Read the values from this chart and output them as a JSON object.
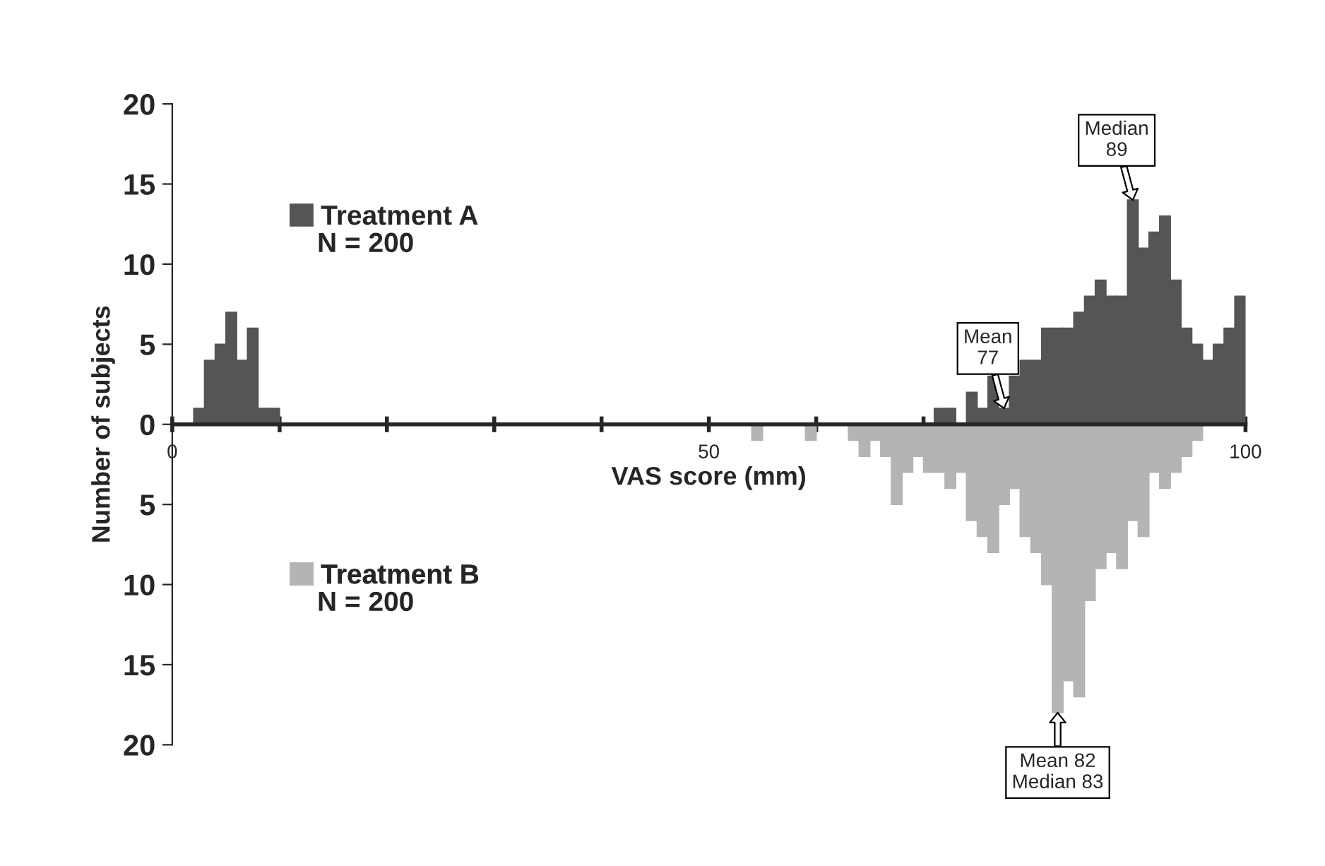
{
  "chart_data": {
    "type": "histogram",
    "xlabel": "VAS score (mm)",
    "ylabel": "Number of subjects",
    "bins": [
      0,
      1,
      2,
      3,
      4,
      5,
      6,
      7,
      8,
      9,
      10,
      11,
      12,
      13,
      14,
      15,
      16,
      17,
      18,
      19,
      20,
      21,
      22,
      23,
      24,
      25,
      26,
      27,
      28,
      29,
      30,
      31,
      32,
      33,
      34,
      35,
      36,
      37,
      38,
      39,
      40,
      41,
      42,
      43,
      44,
      45,
      46,
      47,
      48,
      49,
      50,
      51,
      52,
      53,
      54,
      55,
      56,
      57,
      58,
      59,
      60,
      61,
      62,
      63,
      64,
      65,
      66,
      67,
      68,
      69,
      70,
      71,
      72,
      73,
      74,
      75,
      76,
      77,
      78,
      79,
      80,
      81,
      82,
      83,
      84,
      85,
      86,
      87,
      88,
      89,
      90,
      91,
      92,
      93,
      94,
      95,
      96,
      97,
      98,
      99,
      100
    ],
    "series": [
      {
        "name": "Treatment A",
        "color": "#555555",
        "values": [
          0,
          0,
          1,
          4,
          5,
          7,
          4,
          6,
          1,
          1,
          0,
          0,
          0,
          0,
          0,
          0,
          0,
          0,
          0,
          0,
          0,
          0,
          0,
          0,
          0,
          0,
          0,
          0,
          0,
          0,
          0,
          0,
          0,
          0,
          0,
          0,
          0,
          0,
          0,
          0,
          0,
          0,
          0,
          0,
          0,
          0,
          0,
          0,
          0,
          0,
          0,
          0,
          0,
          0,
          0,
          0,
          0,
          0,
          0,
          0,
          0,
          0,
          0,
          0,
          0,
          0,
          0,
          0,
          0,
          0,
          0,
          1,
          1,
          0,
          2,
          1,
          3,
          1,
          3,
          4,
          4,
          6,
          6,
          6,
          7,
          8,
          9,
          8,
          8,
          14,
          11,
          12,
          13,
          9,
          6,
          5,
          4,
          5,
          6,
          8
        ]
      },
      {
        "name": "Treatment B",
        "color": "#b4b4b4",
        "values": [
          0,
          0,
          0,
          0,
          0,
          0,
          0,
          0,
          0,
          0,
          0,
          0,
          0,
          0,
          0,
          0,
          0,
          0,
          0,
          0,
          0,
          0,
          0,
          0,
          0,
          0,
          0,
          0,
          0,
          0,
          0,
          0,
          0,
          0,
          0,
          0,
          0,
          0,
          0,
          0,
          0,
          0,
          0,
          0,
          0,
          0,
          0,
          0,
          0,
          0,
          0,
          0,
          0,
          0,
          -1,
          0,
          0,
          0,
          0,
          -1,
          0,
          0,
          0,
          -1,
          -2,
          -1,
          -2,
          -5,
          -3,
          -2,
          -3,
          -3,
          -4,
          -3,
          -6,
          -7,
          -8,
          -5,
          -4,
          -7,
          -8,
          -10,
          -18,
          -16,
          -17,
          -11,
          -9,
          -8,
          -9,
          -6,
          -7,
          -3,
          -4,
          -3,
          -2,
          -1,
          0,
          0,
          0,
          0
        ]
      }
    ],
    "xlim": [
      0,
      100
    ],
    "xticks": [
      0,
      {
        "value": 10,
        "label": null
      },
      {
        "value": 20,
        "label": null
      },
      {
        "value": 30,
        "label": null
      },
      {
        "value": 40,
        "label": null
      },
      50,
      {
        "value": 60,
        "label": null
      },
      {
        "value": 70,
        "label": null
      },
      {
        "value": 80,
        "label": null
      },
      {
        "value": 90,
        "label": null
      },
      100
    ],
    "ylim": [
      -20,
      20
    ],
    "yticks": [
      {
        "value": -20,
        "label": "20"
      },
      {
        "value": -15,
        "label": "15"
      },
      {
        "value": -10,
        "label": "10"
      },
      {
        "value": -5,
        "label": "5"
      },
      0,
      5,
      10,
      15,
      20
    ],
    "legend": "left",
    "grid": false,
    "annotations": [
      "N = 200",
      "N = 200",
      {
        "text": "Mean\n77",
        "x": 77.5,
        "y": 1
      },
      {
        "text": "Median\n89",
        "x": 89.5,
        "y": 14
      },
      {
        "text": "Mean 82\nMedian 83",
        "x": 82.5,
        "y": -18
      }
    ]
  }
}
